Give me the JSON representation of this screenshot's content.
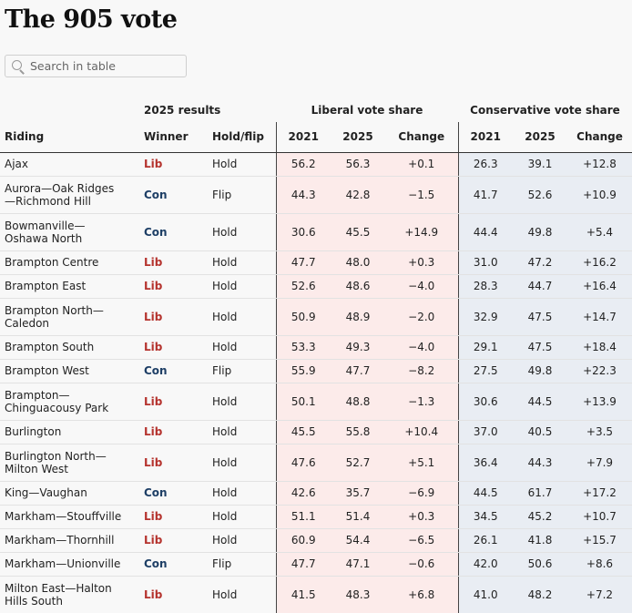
{
  "title": "The 905 vote",
  "search": {
    "placeholder": "Search in table"
  },
  "header": {
    "group_results": "2025 results",
    "group_liberal": "Liberal vote share",
    "group_conservative": "Conservative vote share",
    "columns": [
      "Riding",
      "Winner",
      "Hold/flip",
      "2021",
      "2025",
      "Change",
      "2021",
      "2025",
      "Change"
    ]
  },
  "colors": {
    "lib": "#b5332e",
    "con": "#1e3f66",
    "lib_bg": "#fcebea",
    "con_bg": "#e9edf3"
  },
  "rows": [
    {
      "riding": [
        "Ajax"
      ],
      "winner": "Lib",
      "status": "Hold",
      "lib21": "56.2",
      "lib25": "56.3",
      "libchg": "+0.1",
      "con21": "26.3",
      "con25": "39.1",
      "conchg": "+12.8"
    },
    {
      "riding": [
        "Aurora—Oak Ridges",
        "—Richmond Hill"
      ],
      "winner": "Con",
      "status": "Flip",
      "lib21": "44.3",
      "lib25": "42.8",
      "libchg": "−1.5",
      "con21": "41.7",
      "con25": "52.6",
      "conchg": "+10.9"
    },
    {
      "riding": [
        "Bowmanville—",
        "Oshawa North"
      ],
      "winner": "Con",
      "status": "Hold",
      "lib21": "30.6",
      "lib25": "45.5",
      "libchg": "+14.9",
      "con21": "44.4",
      "con25": "49.8",
      "conchg": "+5.4"
    },
    {
      "riding": [
        "Brampton Centre"
      ],
      "winner": "Lib",
      "status": "Hold",
      "lib21": "47.7",
      "lib25": "48.0",
      "libchg": "+0.3",
      "con21": "31.0",
      "con25": "47.2",
      "conchg": "+16.2"
    },
    {
      "riding": [
        "Brampton East"
      ],
      "winner": "Lib",
      "status": "Hold",
      "lib21": "52.6",
      "lib25": "48.6",
      "libchg": "−4.0",
      "con21": "28.3",
      "con25": "44.7",
      "conchg": "+16.4"
    },
    {
      "riding": [
        "Brampton North—",
        "Caledon"
      ],
      "winner": "Lib",
      "status": "Hold",
      "lib21": "50.9",
      "lib25": "48.9",
      "libchg": "−2.0",
      "con21": "32.9",
      "con25": "47.5",
      "conchg": "+14.7"
    },
    {
      "riding": [
        "Brampton South"
      ],
      "winner": "Lib",
      "status": "Hold",
      "lib21": "53.3",
      "lib25": "49.3",
      "libchg": "−4.0",
      "con21": "29.1",
      "con25": "47.5",
      "conchg": "+18.4"
    },
    {
      "riding": [
        "Brampton West"
      ],
      "winner": "Con",
      "status": "Flip",
      "lib21": "55.9",
      "lib25": "47.7",
      "libchg": "−8.2",
      "con21": "27.5",
      "con25": "49.8",
      "conchg": "+22.3"
    },
    {
      "riding": [
        "Brampton—",
        "Chinguacousy Park"
      ],
      "winner": "Lib",
      "status": "Hold",
      "lib21": "50.1",
      "lib25": "48.8",
      "libchg": "−1.3",
      "con21": "30.6",
      "con25": "44.5",
      "conchg": "+13.9"
    },
    {
      "riding": [
        "Burlington"
      ],
      "winner": "Lib",
      "status": "Hold",
      "lib21": "45.5",
      "lib25": "55.8",
      "libchg": "+10.4",
      "con21": "37.0",
      "con25": "40.5",
      "conchg": "+3.5"
    },
    {
      "riding": [
        "Burlington North—",
        "Milton West"
      ],
      "winner": "Lib",
      "status": "Hold",
      "lib21": "47.6",
      "lib25": "52.7",
      "libchg": "+5.1",
      "con21": "36.4",
      "con25": "44.3",
      "conchg": "+7.9"
    },
    {
      "riding": [
        "King—Vaughan"
      ],
      "winner": "Con",
      "status": "Hold",
      "lib21": "42.6",
      "lib25": "35.7",
      "libchg": "−6.9",
      "con21": "44.5",
      "con25": "61.7",
      "conchg": "+17.2"
    },
    {
      "riding": [
        "Markham—Stouffville"
      ],
      "winner": "Lib",
      "status": "Hold",
      "lib21": "51.1",
      "lib25": "51.4",
      "libchg": "+0.3",
      "con21": "34.5",
      "con25": "45.2",
      "conchg": "+10.7"
    },
    {
      "riding": [
        "Markham—Thornhill"
      ],
      "winner": "Lib",
      "status": "Hold",
      "lib21": "60.9",
      "lib25": "54.4",
      "libchg": "−6.5",
      "con21": "26.1",
      "con25": "41.8",
      "conchg": "+15.7"
    },
    {
      "riding": [
        "Markham—Unionville"
      ],
      "winner": "Con",
      "status": "Flip",
      "lib21": "47.7",
      "lib25": "47.1",
      "libchg": "−0.6",
      "con21": "42.0",
      "con25": "50.6",
      "conchg": "+8.6"
    },
    {
      "riding": [
        "Milton East—Halton",
        "Hills South"
      ],
      "winner": "Lib",
      "status": "Hold",
      "lib21": "41.5",
      "lib25": "48.3",
      "libchg": "+6.8",
      "con21": "41.0",
      "con25": "48.2",
      "conchg": "+7.2"
    }
  ]
}
